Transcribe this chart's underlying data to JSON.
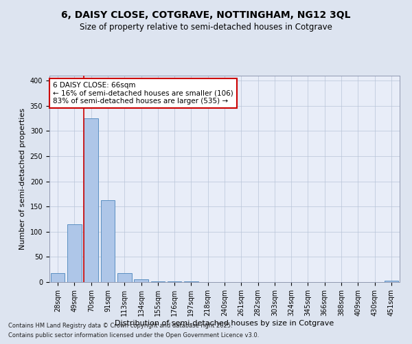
{
  "title1": "6, DAISY CLOSE, COTGRAVE, NOTTINGHAM, NG12 3QL",
  "title2": "Size of property relative to semi-detached houses in Cotgrave",
  "xlabel": "Distribution of semi-detached houses by size in Cotgrave",
  "ylabel": "Number of semi-detached properties",
  "categories": [
    "28sqm",
    "49sqm",
    "70sqm",
    "91sqm",
    "113sqm",
    "134sqm",
    "155sqm",
    "176sqm",
    "197sqm",
    "218sqm",
    "240sqm",
    "261sqm",
    "282sqm",
    "303sqm",
    "324sqm",
    "345sqm",
    "366sqm",
    "388sqm",
    "409sqm",
    "430sqm",
    "451sqm"
  ],
  "values": [
    18,
    115,
    325,
    163,
    18,
    5,
    2,
    1,
    1,
    0,
    0,
    0,
    0,
    0,
    0,
    0,
    0,
    0,
    0,
    0,
    3
  ],
  "bar_color": "#aec6e8",
  "bar_edge_color": "#5a8fc2",
  "vline_x": 1.57,
  "vline_color": "#cc0000",
  "annotation_title": "6 DAISY CLOSE: 66sqm",
  "annotation_line1": "← 16% of semi-detached houses are smaller (106)",
  "annotation_line2": "83% of semi-detached houses are larger (535) →",
  "annotation_box_color": "#ffffff",
  "annotation_box_edge": "#cc0000",
  "ylim": [
    0,
    410
  ],
  "yticks": [
    0,
    50,
    100,
    150,
    200,
    250,
    300,
    350,
    400
  ],
  "footnote1": "Contains HM Land Registry data © Crown copyright and database right 2025.",
  "footnote2": "Contains public sector information licensed under the Open Government Licence v3.0.",
  "bg_color": "#dde4f0",
  "plot_bg_color": "#e8edf8",
  "title1_fontsize": 10,
  "title2_fontsize": 8.5,
  "tick_fontsize": 7,
  "label_fontsize": 8,
  "annotation_fontsize": 7.5,
  "footnote_fontsize": 6
}
